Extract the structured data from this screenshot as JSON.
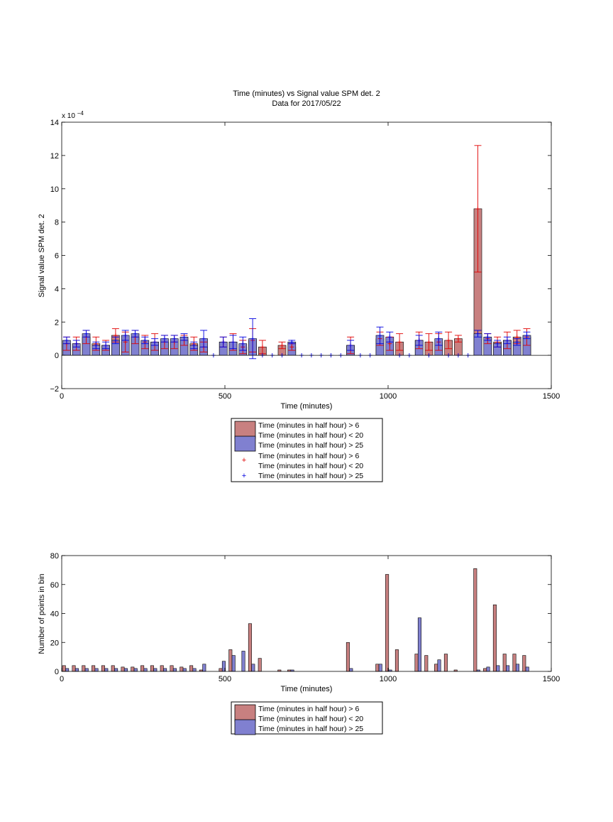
{
  "colors": {
    "red_fill": "#c88080",
    "blue_fill": "#8080d0",
    "red_line": "#e00000",
    "blue_line": "#0000e0"
  },
  "chart_data": [
    {
      "type": "bar",
      "title": "Time (minutes) vs Signal value SPM det. 2",
      "subtitle": "Data for 2017/05/22",
      "xlabel": "Time (minutes)",
      "ylabel": "Signal value SPM det. 2",
      "y_exponent": "x 10",
      "y_exponent_power": "−4",
      "xlim": [
        0,
        1500
      ],
      "ylim": [
        -2,
        14
      ],
      "xticks": [
        0,
        500,
        1000,
        1500
      ],
      "yticks": [
        -2,
        0,
        2,
        4,
        6,
        8,
        10,
        12,
        14
      ],
      "legend": {
        "placement": "below",
        "entries": [
          "Time (minutes in half hour) > 6",
          "Time (minutes in half hour) < 20",
          "Time (minutes in half hour) > 25",
          "Time (minutes in half hour) > 6",
          "Time (minutes in half hour) < 20",
          "Time (minutes in half hour) > 25"
        ]
      },
      "series": [
        {
          "name": "Time (minutes in half hour) > 6 / < 20",
          "x": [
            15,
            45,
            75,
            105,
            135,
            165,
            195,
            225,
            255,
            285,
            315,
            345,
            375,
            405,
            435,
            495,
            525,
            555,
            585,
            615,
            675,
            705,
            885,
            975,
            1005,
            1035,
            1095,
            1125,
            1155,
            1185,
            1215,
            1275,
            1305,
            1335,
            1365,
            1395,
            1425
          ],
          "values": [
            0.7,
            0.7,
            1.1,
            0.7,
            0.6,
            1.2,
            0.8,
            1.1,
            0.8,
            0.8,
            0.8,
            0.8,
            0.9,
            0.7,
            0.5,
            0.8,
            0.8,
            0.5,
            0.9,
            0.5,
            0.6,
            0.5,
            0.6,
            1.0,
            0.7,
            0.8,
            0.9,
            0.8,
            0.8,
            0.9,
            1.0,
            8.8,
            1.0,
            0.8,
            0.9,
            1.1,
            1.1
          ],
          "errors": [
            0.4,
            0.4,
            0.4,
            0.4,
            0.3,
            0.4,
            0.6,
            0.4,
            0.4,
            0.5,
            0.4,
            0.4,
            0.3,
            0.4,
            0.3,
            0.3,
            0.5,
            0.4,
            0.7,
            0.4,
            0.2,
            0.2,
            0.5,
            0.4,
            0.4,
            0.5,
            0.5,
            0.5,
            0.5,
            0.5,
            0.2,
            3.8,
            0.3,
            0.3,
            0.5,
            0.4,
            0.5
          ]
        },
        {
          "name": "Time (minutes in half hour) > 25",
          "x": [
            15,
            45,
            75,
            105,
            135,
            165,
            195,
            225,
            255,
            285,
            315,
            345,
            375,
            405,
            435,
            465,
            495,
            525,
            555,
            585,
            615,
            645,
            675,
            705,
            735,
            765,
            795,
            825,
            855,
            885,
            915,
            945,
            975,
            1005,
            1035,
            1065,
            1095,
            1125,
            1155,
            1185,
            1215,
            1245,
            1275,
            1305,
            1335,
            1365,
            1395,
            1425
          ],
          "values": [
            0.9,
            0.7,
            1.3,
            0.6,
            0.6,
            0.9,
            1.2,
            1.3,
            0.9,
            0.8,
            1.0,
            1.0,
            1.1,
            0.6,
            1.0,
            0,
            0.8,
            0.8,
            0.7,
            1.0,
            0,
            0,
            0,
            0.8,
            0,
            0,
            0,
            0,
            0,
            0.6,
            0,
            0,
            1.2,
            1.1,
            0,
            0,
            0.9,
            0,
            1.0,
            0,
            0,
            0,
            1.3,
            1.1,
            0.7,
            0.9,
            0.8,
            1.2
          ],
          "errors": [
            0.2,
            0.2,
            0.2,
            0.2,
            0.2,
            0.2,
            0.3,
            0.2,
            0.2,
            0.2,
            0.2,
            0.2,
            0.2,
            0.2,
            0.5,
            0,
            0.3,
            0.4,
            0.4,
            1.2,
            0,
            0,
            0,
            0.1,
            0,
            0,
            0,
            0,
            0,
            0.3,
            0,
            0,
            0.5,
            0.3,
            0,
            0,
            0.3,
            0,
            0.4,
            0,
            0,
            0,
            0.2,
            0.2,
            0.2,
            0.2,
            0.2,
            0.2
          ]
        }
      ]
    },
    {
      "type": "bar",
      "xlabel": "Time (minutes)",
      "ylabel": "Number of points in bin",
      "xlim": [
        0,
        1500
      ],
      "ylim": [
        0,
        80
      ],
      "xticks": [
        0,
        500,
        1000,
        1500
      ],
      "yticks": [
        0,
        20,
        40,
        60,
        80
      ],
      "legend": {
        "placement": "below",
        "entries": [
          "Time (minutes in half hour) > 6",
          "Time (minutes in half hour) < 20",
          "Time (minutes in half hour) > 25"
        ]
      },
      "series": [
        {
          "name": "Time (minutes in half hour) > 6 / < 20",
          "x": [
            0,
            30,
            60,
            90,
            120,
            150,
            180,
            210,
            240,
            270,
            300,
            330,
            360,
            390,
            420,
            450,
            480,
            510,
            540,
            570,
            600,
            630,
            660,
            690,
            720,
            750,
            780,
            810,
            840,
            870,
            900,
            930,
            960,
            990,
            1020,
            1050,
            1080,
            1110,
            1140,
            1170,
            1200,
            1230,
            1260,
            1290,
            1320,
            1350,
            1380,
            1410
          ],
          "values": [
            4,
            4,
            4,
            4,
            4,
            4,
            3,
            3,
            4,
            4,
            4,
            4,
            3,
            4,
            1,
            0,
            2,
            15,
            0,
            33,
            9,
            0,
            1,
            1,
            0,
            0,
            0,
            0,
            0,
            20,
            0,
            0,
            5,
            67,
            15,
            0,
            12,
            11,
            5,
            12,
            1,
            0,
            71,
            2,
            46,
            12,
            12,
            11
          ]
        },
        {
          "name": "Time (minutes in half hour) > 25",
          "x": [
            0,
            30,
            60,
            90,
            120,
            150,
            180,
            210,
            240,
            270,
            300,
            330,
            360,
            390,
            420,
            450,
            480,
            510,
            540,
            570,
            600,
            630,
            660,
            690,
            720,
            750,
            780,
            810,
            840,
            870,
            900,
            930,
            960,
            990,
            1020,
            1050,
            1080,
            1110,
            1140,
            1170,
            1200,
            1230,
            1260,
            1290,
            1320,
            1350,
            1380,
            1410
          ],
          "values": [
            2,
            2,
            2,
            2,
            2,
            2,
            2,
            2,
            2,
            2,
            2,
            2,
            2,
            2,
            5,
            0,
            7,
            11,
            14,
            5,
            0,
            0,
            0,
            1,
            0,
            0,
            0,
            0,
            0,
            2,
            0,
            0,
            5,
            1,
            0,
            0,
            37,
            0,
            8,
            0,
            0,
            0,
            1,
            3,
            4,
            4,
            5,
            3
          ]
        }
      ]
    }
  ]
}
